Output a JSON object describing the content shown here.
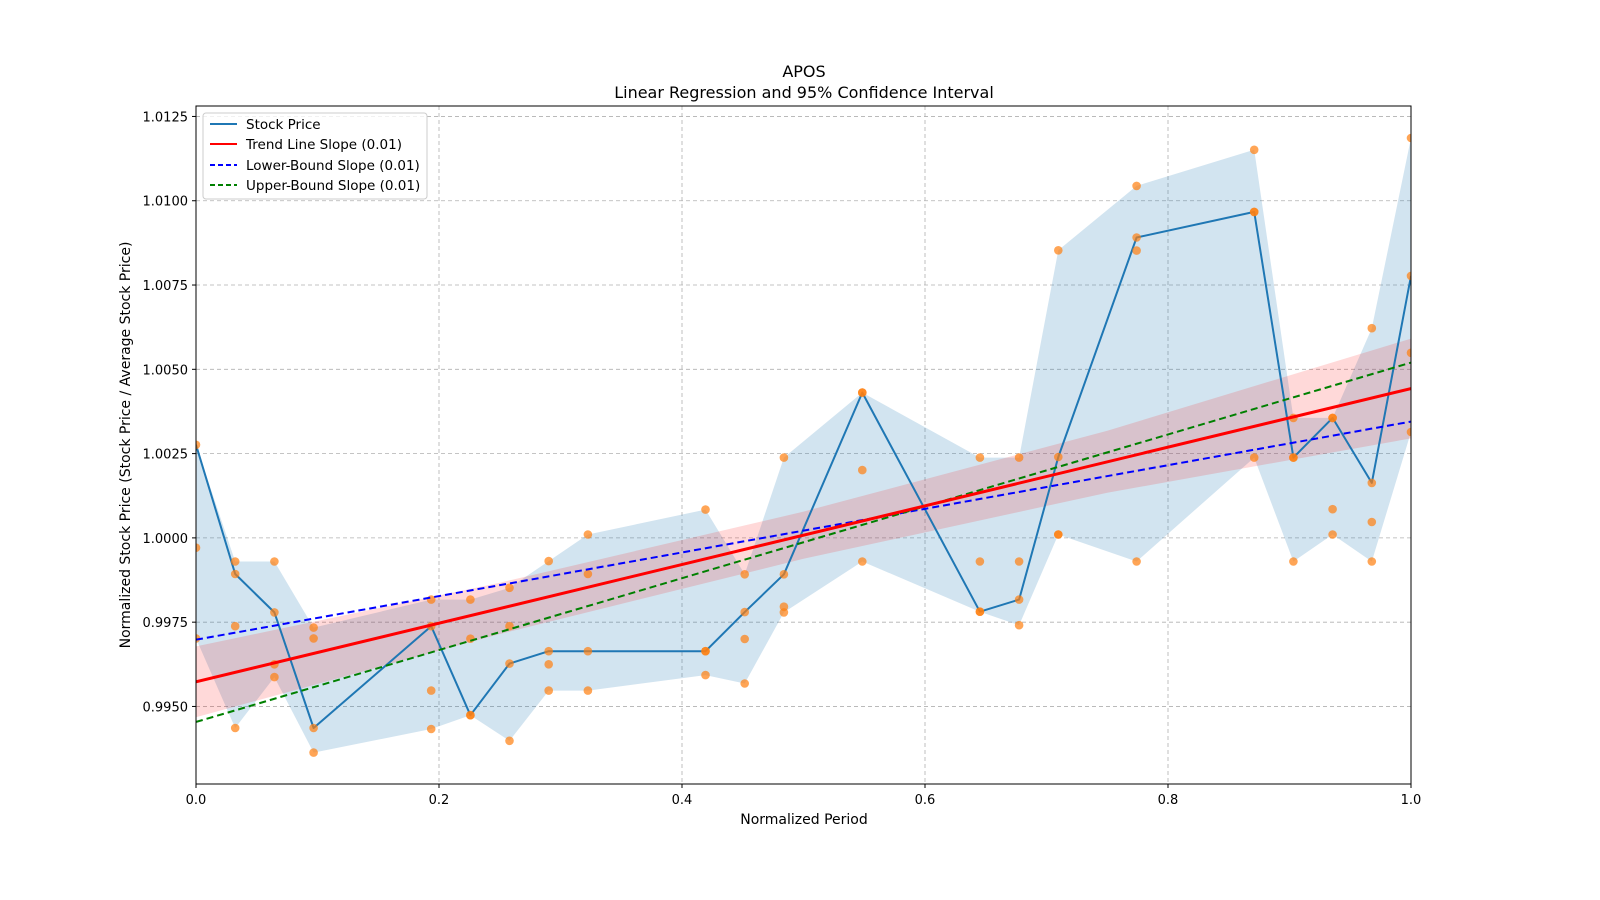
{
  "chart_data": {
    "type": "line",
    "title": "APOS",
    "subtitle": "Linear Regression and 95% Confidence Interval",
    "xlabel": "Normalized Period",
    "ylabel": "Normalized Stock Price (Stock Price / Average Stock Price)",
    "xlim": [
      0.0,
      1.0
    ],
    "ylim": [
      0.9927,
      1.01281
    ],
    "xticks": [
      0.0,
      0.2,
      0.4,
      0.6,
      0.8,
      1.0
    ],
    "xtick_labels": [
      "0.0",
      "0.2",
      "0.4",
      "0.6",
      "0.8",
      "1.0"
    ],
    "yticks": [
      0.995,
      0.9975,
      1.0,
      1.0025,
      1.005,
      1.0075,
      1.01,
      1.0125
    ],
    "ytick_labels": [
      "0.9950",
      "0.9975",
      "1.0000",
      "1.0025",
      "1.0050",
      "1.0075",
      "1.0100",
      "1.0125"
    ],
    "grid": true,
    "legend_position": "top-left",
    "legend": [
      {
        "label": "Stock Price",
        "color": "#1f77b4",
        "style": "solid"
      },
      {
        "label": "Trend Line Slope (0.01)",
        "color": "#ff0000",
        "style": "solid"
      },
      {
        "label": "Lower-Bound Slope (0.01)",
        "color": "#0000ff",
        "style": "dashed"
      },
      {
        "label": "Upper-Bound Slope (0.01)",
        "color": "#008000",
        "style": "dashed"
      }
    ],
    "period_index_denominator": 31,
    "period_indices": [
      0,
      1,
      2,
      3,
      6,
      7,
      8,
      9,
      10,
      13,
      14,
      15,
      17,
      20,
      21,
      22,
      24,
      27,
      28,
      29,
      30,
      31
    ],
    "series": [
      {
        "name": "Stock Price",
        "color": "#1f77b4",
        "values": [
          1.00276,
          0.99893,
          0.99779,
          0.99436,
          0.99738,
          0.99474,
          0.99627,
          0.99664,
          0.99664,
          0.99664,
          0.9978,
          0.99892,
          1.00431,
          0.99781,
          0.99817,
          1.0024,
          1.00891,
          1.00967,
          1.00238,
          1.00356,
          1.00163,
          1.00777
        ]
      }
    ],
    "scatter": {
      "color": "#ff7f0e",
      "points_per_period": [
        [
          1.00276,
          0.99971,
          0.99702
        ],
        [
          0.9993,
          0.99893,
          0.99738,
          0.99436
        ],
        [
          0.9993,
          0.99779,
          0.99625,
          0.99587
        ],
        [
          0.99734,
          0.99702,
          0.99436,
          0.99363
        ],
        [
          0.99817,
          0.99738,
          0.99547,
          0.99433
        ],
        [
          0.99817,
          0.99701,
          0.99474,
          0.99474
        ],
        [
          0.99852,
          0.99738,
          0.99627,
          0.99398
        ],
        [
          0.99931,
          0.99664,
          0.99625,
          0.99547
        ],
        [
          1.0001,
          0.99893,
          0.99664,
          0.99547
        ],
        [
          1.00084,
          0.99664,
          0.99664,
          0.99593
        ],
        [
          0.99892,
          0.9978,
          0.997,
          0.99568
        ],
        [
          1.00238,
          0.99892,
          0.99796,
          0.99779
        ],
        [
          1.00431,
          1.00431,
          1.00201,
          0.9993
        ],
        [
          1.00238,
          0.9993,
          0.99781,
          0.99781
        ],
        [
          1.00238,
          0.9993,
          0.99817,
          0.99741
        ],
        [
          1.00853,
          1.0024,
          1.0001,
          1.0001
        ],
        [
          1.01044,
          1.00891,
          1.00852,
          0.9993
        ],
        [
          1.01151,
          1.00967,
          1.00967,
          1.00238
        ],
        [
          1.00356,
          1.00238,
          1.00238,
          0.9993
        ],
        [
          1.00356,
          1.00356,
          1.00085,
          1.0001
        ],
        [
          1.00622,
          1.00163,
          1.00047,
          0.9993
        ],
        [
          1.01186,
          1.00777,
          1.00549,
          1.00314
        ]
      ]
    },
    "range_band": {
      "color": "#1f77b4",
      "opacity": 0.2
    },
    "regression": {
      "trend_line": {
        "x": [
          0.0,
          1.0
        ],
        "y": [
          0.99573,
          1.00443
        ],
        "color": "#ff0000"
      },
      "lower_bound_line": {
        "x": [
          0.0,
          1.0
        ],
        "y": [
          0.99698,
          1.00345
        ],
        "color": "#0000ff"
      },
      "upper_bound_line": {
        "x": [
          0.0,
          1.0
        ],
        "y": [
          0.99454,
          1.0052
        ],
        "color": "#008000"
      },
      "confidence_band": {
        "x": [
          0.0,
          0.25,
          0.5,
          0.75,
          1.0
        ],
        "lower": [
          0.99468,
          0.99715,
          0.99938,
          1.00134,
          1.00295
        ],
        "upper": [
          0.99678,
          0.99867,
          1.00078,
          1.00318,
          1.00591
        ],
        "color": "#ff0000",
        "opacity": 0.15
      }
    }
  }
}
